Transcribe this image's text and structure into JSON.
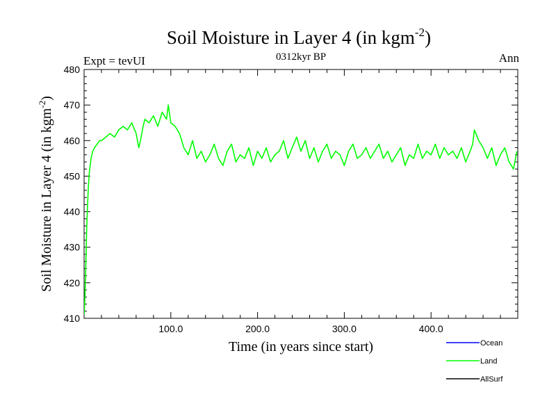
{
  "chart_data": {
    "type": "line",
    "title": "Soil Moisture in Layer 4 (in kgm",
    "title_sup": "-2",
    "title_close": ")",
    "subtitle_left": "Expt = tevUI",
    "subtitle_center": "0312kyr BP",
    "subtitle_right": "Ann",
    "xlabel": "Time (in years since start)",
    "ylabel": "Soil Moisture in Layer 4 (in kgm",
    "ylabel_sup": "-2",
    "ylabel_close": ")",
    "xlim": [
      0,
      500
    ],
    "ylim": [
      410,
      480
    ],
    "xticks": [
      {
        "value": 100,
        "label": "100.0"
      },
      {
        "value": 200,
        "label": "200.0"
      },
      {
        "value": 300,
        "label": "300.0"
      },
      {
        "value": 400,
        "label": "400.0"
      }
    ],
    "yticks": [
      {
        "value": 410,
        "label": "410"
      },
      {
        "value": 420,
        "label": "420"
      },
      {
        "value": 430,
        "label": "430"
      },
      {
        "value": 440,
        "label": "440"
      },
      {
        "value": 450,
        "label": "450"
      },
      {
        "value": 460,
        "label": "460"
      },
      {
        "value": 470,
        "label": "470"
      },
      {
        "value": 480,
        "label": "480"
      }
    ],
    "legend": [
      {
        "name": "Ocean",
        "color": "#0000ff"
      },
      {
        "name": "Land",
        "color": "#00ff00"
      },
      {
        "name": "AllSurf",
        "color": "#000000"
      }
    ],
    "series": [
      {
        "name": "Land",
        "color": "#00ff00",
        "x": [
          0,
          1,
          2,
          3,
          4,
          5,
          6,
          8,
          10,
          12,
          15,
          18,
          20,
          25,
          30,
          35,
          40,
          45,
          50,
          55,
          60,
          63,
          65,
          68,
          70,
          75,
          80,
          85,
          90,
          95,
          97,
          100,
          105,
          110,
          115,
          120,
          125,
          130,
          135,
          140,
          145,
          150,
          155,
          160,
          165,
          170,
          175,
          180,
          185,
          190,
          195,
          200,
          205,
          210,
          215,
          220,
          225,
          230,
          235,
          240,
          245,
          250,
          255,
          260,
          265,
          270,
          275,
          280,
          285,
          290,
          295,
          300,
          305,
          310,
          315,
          320,
          325,
          330,
          335,
          340,
          345,
          350,
          355,
          360,
          365,
          370,
          375,
          380,
          385,
          390,
          395,
          400,
          405,
          410,
          415,
          420,
          425,
          430,
          435,
          440,
          445,
          448,
          450,
          455,
          460,
          465,
          470,
          475,
          480,
          485,
          490,
          495,
          499
        ],
        "y": [
          411,
          416,
          425,
          435,
          442,
          447,
          451,
          455,
          457,
          458,
          459,
          460,
          460,
          461,
          462,
          461,
          463,
          464,
          463,
          465,
          462,
          458,
          460,
          464,
          466,
          465,
          467,
          464,
          468,
          466,
          470,
          465,
          464,
          462,
          458,
          456,
          460,
          455,
          457,
          454,
          456,
          459,
          455,
          453,
          457,
          459,
          454,
          456,
          455,
          458,
          453,
          457,
          455,
          458,
          454,
          456,
          457,
          460,
          455,
          458,
          461,
          457,
          460,
          455,
          458,
          454,
          457,
          459,
          455,
          457,
          456,
          453,
          457,
          459,
          455,
          456,
          458,
          455,
          457,
          459,
          455,
          457,
          454,
          456,
          458,
          453,
          456,
          455,
          459,
          455,
          457,
          456,
          459,
          455,
          458,
          456,
          457,
          455,
          458,
          454,
          457,
          459,
          463,
          460,
          458,
          455,
          458,
          453,
          456,
          458,
          454,
          452,
          457
        ]
      }
    ]
  }
}
